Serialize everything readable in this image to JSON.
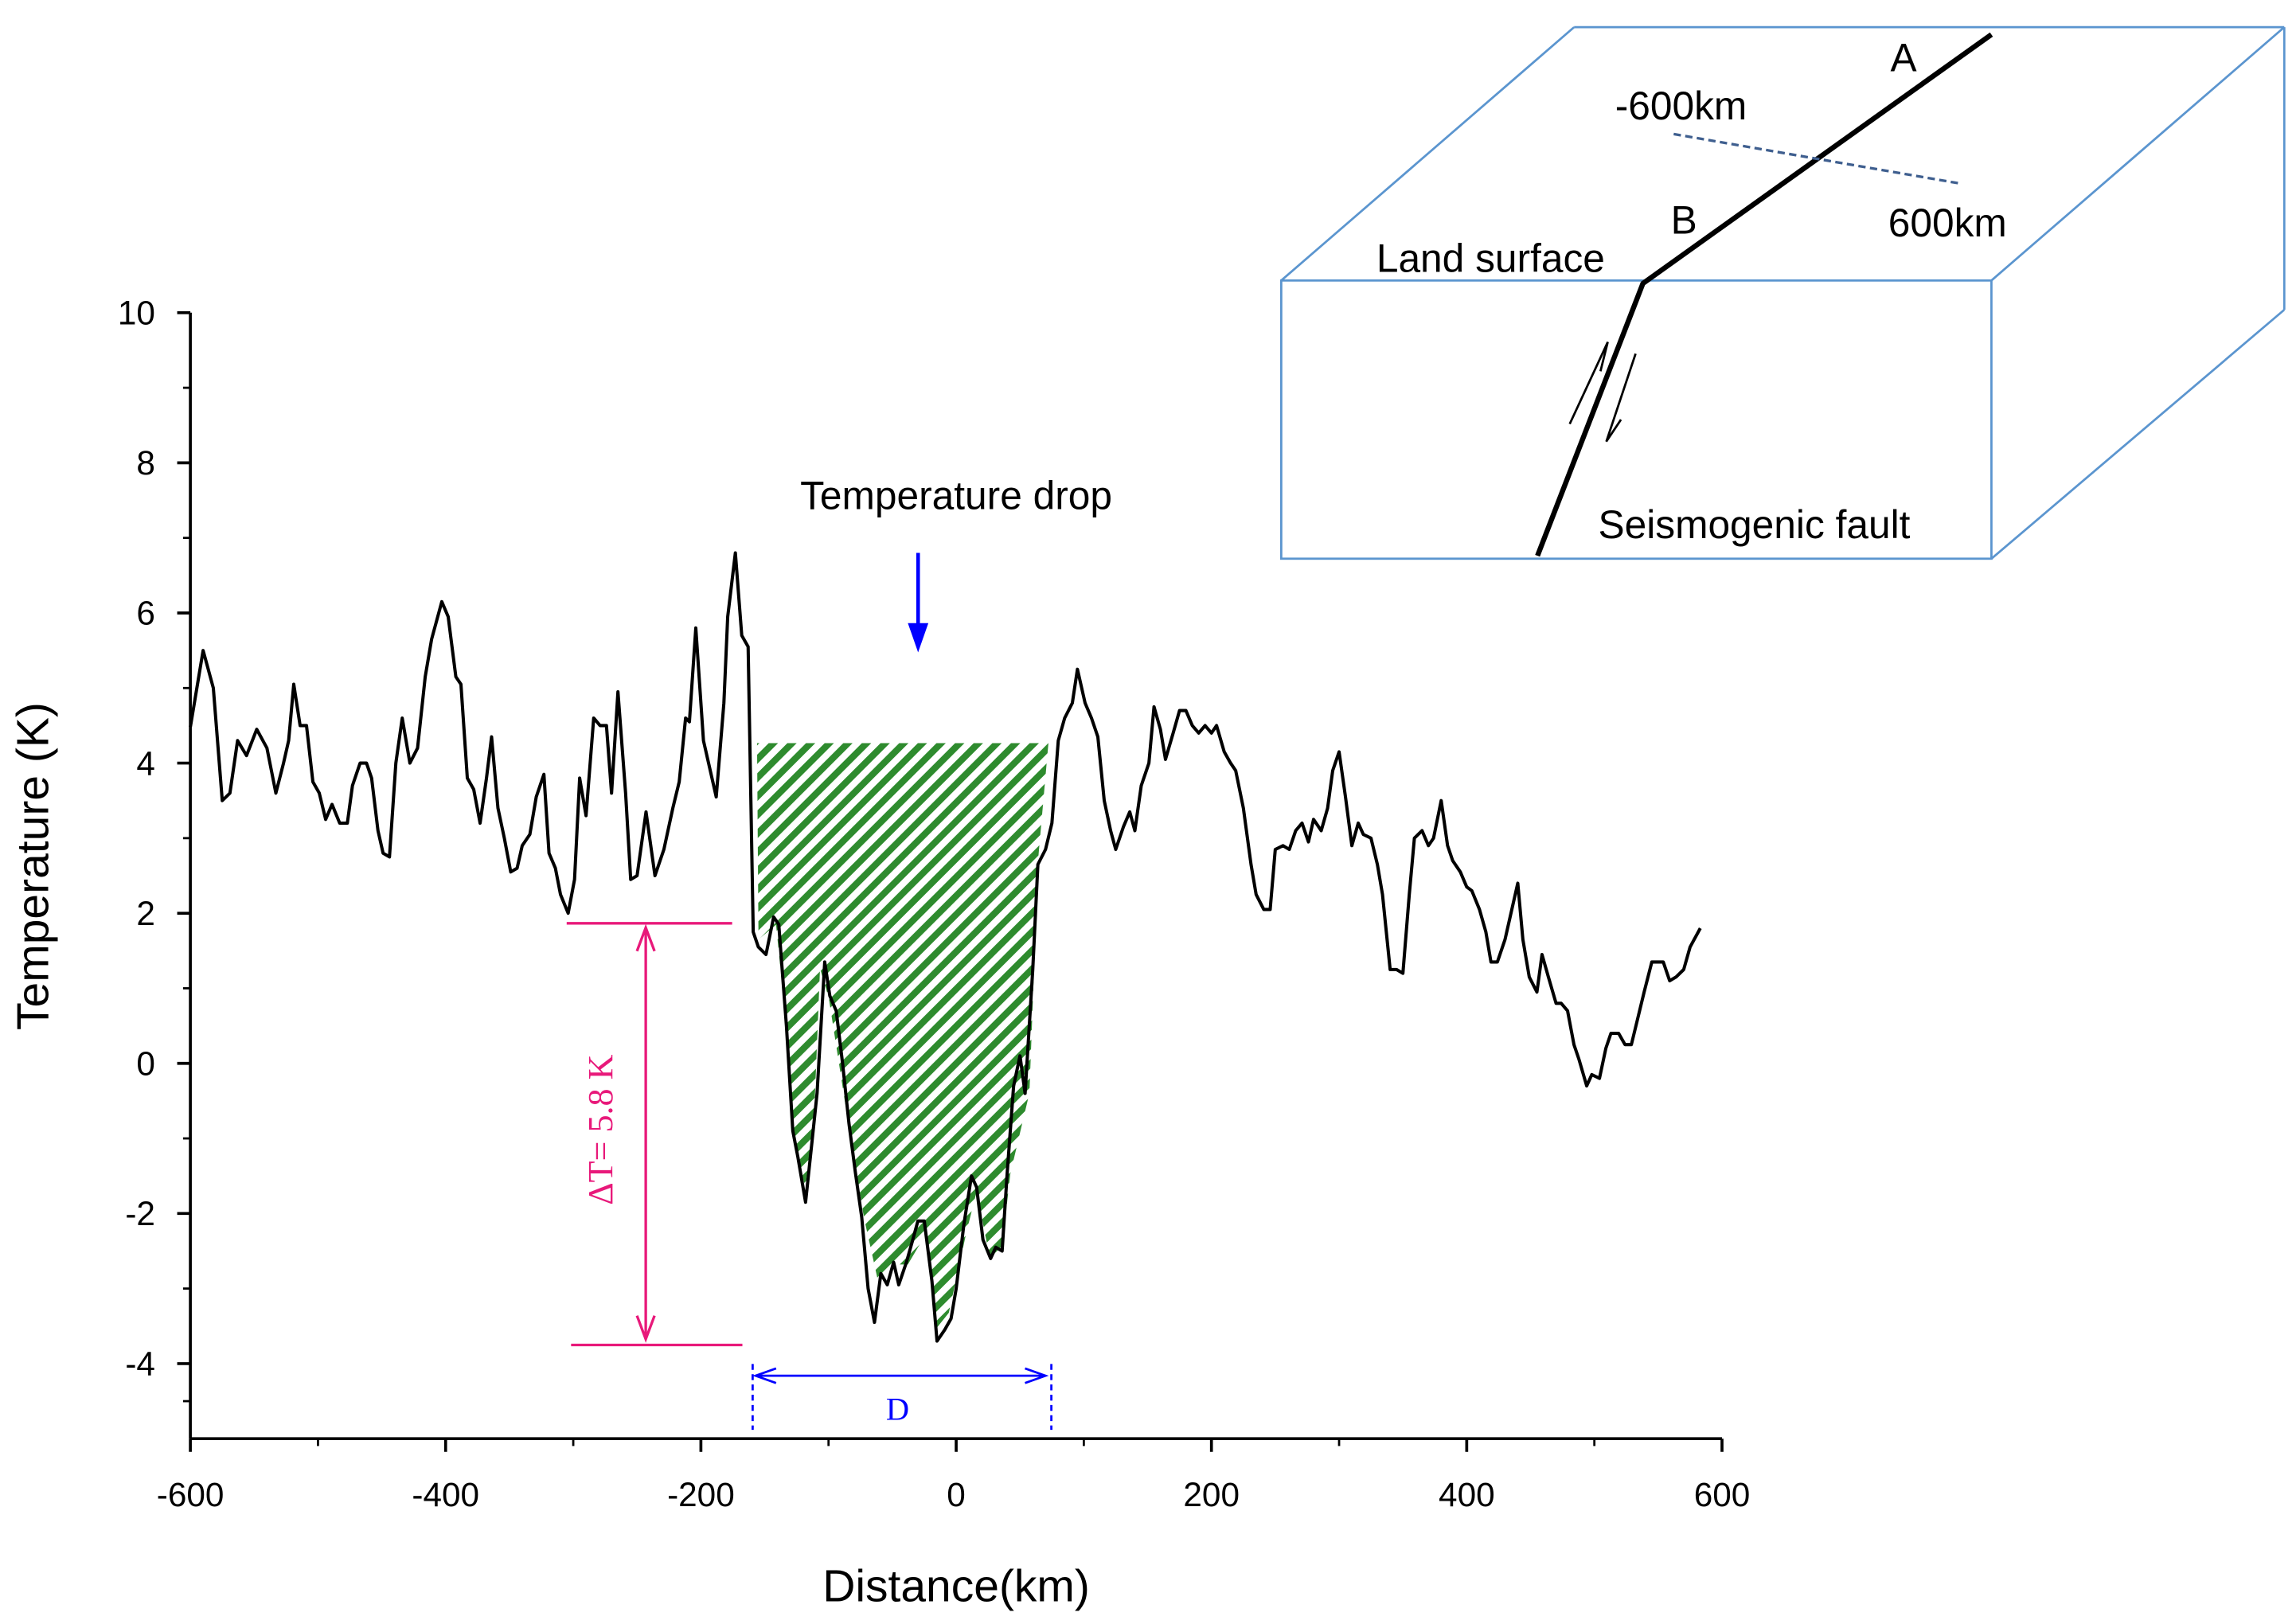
{
  "chart_data": {
    "type": "line",
    "xlabel": "Distance(km)",
    "ylabel": "Temperature (K)",
    "xlim": [
      -600,
      600
    ],
    "xticks": [
      -600,
      -400,
      -200,
      0,
      200,
      400,
      600
    ],
    "ylim": [
      -5,
      10
    ],
    "yticks": [
      -4,
      -2,
      0,
      2,
      4,
      6,
      8,
      10
    ],
    "x": [
      -600,
      -590,
      -582,
      -575,
      -569,
      -563,
      -556,
      -548,
      -540,
      -533,
      -527,
      -523,
      -519,
      -514,
      -509,
      -504,
      -499,
      -494,
      -489,
      -483,
      -477,
      -473,
      -467,
      -462,
      -458,
      -453,
      -449,
      -444,
      -439,
      -434,
      -428,
      -422,
      -416,
      -411,
      -403,
      -398,
      -392,
      -388,
      -383,
      -378,
      -373,
      -368,
      -364,
      -359,
      -354,
      -349,
      -344,
      -340,
      -334,
      -329,
      -323,
      -319,
      -314,
      -310,
      -304,
      -299,
      -295,
      -290,
      -284,
      -279,
      -274,
      -270,
      -265,
      -259,
      -255,
      -250,
      -243,
      -236,
      -229,
      -222,
      -217,
      -212,
      -209,
      -204,
      -198,
      -194,
      -188,
      -182,
      -179,
      -173,
      -168,
      -163,
      -159,
      -155,
      -149,
      -143,
      -139,
      -133,
      -128,
      -124,
      -118,
      -113,
      -109,
      -103,
      -99,
      -94,
      -89,
      -84,
      -79,
      -74,
      -69,
      -64,
      -59,
      -54,
      -49,
      -45,
      -39,
      -34,
      -30,
      -25,
      -19,
      -15,
      -9,
      -4,
      0,
      6,
      12,
      16,
      21,
      27,
      31,
      36,
      40,
      45,
      50,
      54,
      60,
      64,
      70,
      75,
      80,
      85,
      91,
      95,
      101,
      106,
      111,
      116,
      121,
      125,
      131,
      136,
      140,
      145,
      151,
      155,
      160,
      164,
      170,
      175,
      180,
      185,
      190,
      195,
      200,
      204,
      210,
      215,
      219,
      225,
      231,
      235,
      241,
      246,
      250,
      256,
      261,
      266,
      271,
      276,
      280,
      286,
      291,
      295,
      300,
      305,
      310,
      315,
      319,
      325,
      330,
      334,
      340,
      345,
      350,
      355,
      359,
      365,
      370,
      374,
      380,
      385,
      389,
      395,
      400,
      404,
      410,
      415,
      419,
      424,
      430,
      434,
      440,
      444,
      449,
      455,
      459,
      464,
      470,
      474,
      479,
      484,
      488,
      494,
      498,
      504,
      509,
      513,
      519,
      524,
      529,
      534,
      539,
      545,
      549,
      554,
      559,
      564,
      570,
      575,
      583
    ],
    "series": [
      {
        "color": "#000000",
        "values": [
          4.48,
          5.5,
          5.0,
          3.5,
          3.6,
          4.3,
          4.1,
          4.45,
          4.2,
          3.6,
          4.0,
          4.3,
          5.05,
          4.5,
          4.5,
          3.75,
          3.6,
          3.25,
          3.45,
          3.2,
          3.2,
          3.7,
          4.0,
          4.0,
          3.8,
          3.1,
          2.8,
          2.75,
          4.0,
          4.6,
          4.0,
          4.2,
          5.15,
          5.65,
          6.15,
          5.95,
          5.15,
          5.05,
          3.8,
          3.65,
          3.2,
          3.8,
          4.35,
          3.4,
          3.0,
          2.55,
          2.6,
          2.9,
          3.05,
          3.55,
          3.85,
          2.8,
          2.6,
          2.25,
          2.0,
          2.45,
          3.8,
          3.3,
          4.6,
          4.5,
          4.5,
          3.6,
          4.95,
          3.6,
          2.45,
          2.5,
          3.35,
          2.5,
          2.85,
          3.4,
          3.75,
          4.6,
          4.55,
          5.8,
          4.3,
          4.0,
          3.55,
          4.8,
          5.95,
          6.8,
          5.7,
          5.55,
          1.75,
          1.55,
          1.45,
          1.95,
          1.85,
          0.5,
          -0.9,
          -1.25,
          -1.85,
          -1.05,
          -0.4,
          1.35,
          0.9,
          0.7,
          0.0,
          -0.8,
          -1.45,
          -2.05,
          -3.0,
          -3.45,
          -2.8,
          -2.95,
          -2.65,
          -2.95,
          -2.65,
          -2.35,
          -2.1,
          -2.1,
          -2.9,
          -3.7,
          -3.55,
          -3.4,
          -3.0,
          -2.15,
          -1.5,
          -1.65,
          -2.35,
          -2.6,
          -2.45,
          -2.5,
          -1.45,
          -0.3,
          0.1,
          -0.4,
          1.25,
          2.65,
          2.85,
          3.2,
          4.3,
          4.6,
          4.8,
          5.25,
          4.8,
          4.6,
          4.35,
          3.5,
          3.1,
          2.85,
          3.15,
          3.35,
          3.1,
          3.7,
          4.0,
          4.75,
          4.45,
          4.05,
          4.4,
          4.7,
          4.7,
          4.5,
          4.4,
          4.5,
          4.4,
          4.5,
          4.15,
          4.0,
          3.9,
          3.4,
          2.65,
          2.25,
          2.05,
          2.05,
          2.85,
          2.9,
          2.85,
          3.1,
          3.2,
          2.95,
          3.25,
          3.1,
          3.4,
          3.9,
          4.15,
          3.55,
          2.9,
          3.2,
          3.05,
          3.0,
          2.65,
          2.25,
          1.25,
          1.25,
          1.2,
          2.25,
          3.0,
          3.1,
          2.9,
          3.0,
          3.5,
          2.9,
          2.7,
          2.55,
          2.35,
          2.3,
          2.05,
          1.75,
          1.35,
          1.35,
          1.65,
          1.95,
          2.4,
          1.65,
          1.15,
          0.95,
          1.45,
          1.15,
          0.8,
          0.8,
          0.7,
          0.25,
          0.05,
          -0.3,
          -0.15,
          -0.2,
          0.2,
          0.4,
          0.4,
          0.25,
          0.25,
          0.6,
          0.95,
          1.35,
          1.35,
          1.35,
          1.1,
          1.15,
          1.25,
          1.55,
          1.8
        ]
      }
    ],
    "annotations": {
      "drop": "Temperature drop",
      "delta": "ΔT= 5.8 K",
      "width": "D"
    },
    "inset": {
      "a": "A",
      "b": "B",
      "left_distance": "-600km",
      "right_distance": "600km",
      "surface": "Land surface",
      "fault": "Seismogenic fault"
    }
  }
}
